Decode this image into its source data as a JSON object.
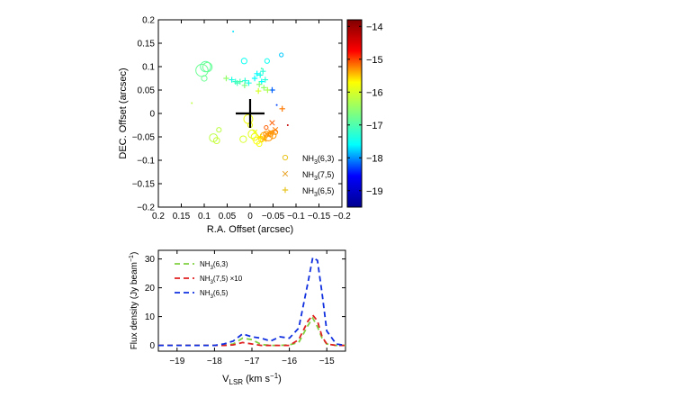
{
  "chart_data": [
    {
      "type": "scatter",
      "xlabel": "R.A. Offset (arcsec)",
      "ylabel": "DEC. Offset (arcsec)",
      "xlim": [
        0.2,
        -0.2
      ],
      "ylim": [
        -0.2,
        0.2
      ],
      "x_reversed": true,
      "xticks": [
        0.2,
        0.15,
        0.1,
        0.05,
        0,
        -0.05,
        -0.1,
        -0.15,
        -0.2
      ],
      "xtick_labels": [
        "0.2",
        "0.15",
        "0.1",
        "0.05",
        "0",
        "−0.05",
        "−0.1",
        "−0.15",
        "−0.2"
      ],
      "yticks": [
        0.2,
        0.15,
        0.1,
        0.05,
        0,
        -0.05,
        -0.1,
        -0.15,
        -0.2
      ],
      "ytick_labels": [
        "0.2",
        "0.15",
        "0.1",
        "0.05",
        "0",
        "−0.05",
        "−0.1",
        "−0.15",
        "−0.2"
      ],
      "grid": false,
      "legend_position": "bottom-right",
      "legend": [
        {
          "base": "NH",
          "sub": "3",
          "tail": "(6,3)",
          "marker": "circle",
          "color": "#e8c420"
        },
        {
          "base": "NH",
          "sub": "3",
          "tail": "(7,5)",
          "marker": "x",
          "color": "#e8a020"
        },
        {
          "base": "NH",
          "sub": "3",
          "tail": "(6,5)",
          "marker": "plus",
          "color": "#e8c420"
        }
      ],
      "center_cross": {
        "x": 0.0,
        "y": 0.0
      },
      "colorbar": {
        "range": [
          -19.5,
          -13.8
        ],
        "ticks": [
          -14,
          -15,
          -16,
          -17,
          -18,
          -19
        ],
        "tick_labels": [
          "−14",
          "−15",
          "−16",
          "−17",
          "−18",
          "−19"
        ],
        "colormap": "jet",
        "colormap_stops": [
          "#00008f",
          "#0000ff",
          "#00ffff",
          "#7fff7f",
          "#ffff00",
          "#ff0000",
          "#800000"
        ]
      },
      "series": [
        {
          "marker": "circle",
          "points": [
            {
              "x": 0.105,
              "y": 0.092,
              "v": -16.8,
              "s": 2.6
            },
            {
              "x": 0.097,
              "y": 0.1,
              "v": -16.9,
              "s": 2.2
            },
            {
              "x": 0.093,
              "y": 0.099,
              "v": -16.8,
              "s": 2.0
            },
            {
              "x": 0.1,
              "y": 0.075,
              "v": -16.8,
              "s": 1.2
            },
            {
              "x": 0.013,
              "y": 0.112,
              "v": -17.5,
              "s": 1.2
            },
            {
              "x": -0.037,
              "y": 0.112,
              "v": -17.5,
              "s": 1.0
            },
            {
              "x": -0.068,
              "y": 0.125,
              "v": -17.8,
              "s": 0.8
            },
            {
              "x": 0.08,
              "y": -0.052,
              "v": -16.2,
              "s": 1.7
            },
            {
              "x": 0.073,
              "y": -0.058,
              "v": -16.1,
              "s": 1.3
            },
            {
              "x": 0.068,
              "y": -0.035,
              "v": -16.2,
              "s": 1.0
            },
            {
              "x": 0.004,
              "y": -0.012,
              "v": -15.8,
              "s": 1.9
            },
            {
              "x": 0.0,
              "y": -0.025,
              "v": -15.8,
              "s": 1.0
            },
            {
              "x": 0.015,
              "y": -0.055,
              "v": -16.0,
              "s": 1.4
            },
            {
              "x": -0.005,
              "y": -0.044,
              "v": -15.9,
              "s": 1.8
            },
            {
              "x": -0.01,
              "y": -0.05,
              "v": -15.9,
              "s": 1.5
            },
            {
              "x": -0.015,
              "y": -0.058,
              "v": -15.7,
              "s": 1.5
            },
            {
              "x": -0.02,
              "y": -0.065,
              "v": -15.8,
              "s": 1.1
            },
            {
              "x": -0.025,
              "y": -0.055,
              "v": -15.6,
              "s": 1.2
            },
            {
              "x": -0.03,
              "y": -0.048,
              "v": -15.4,
              "s": 1.5
            },
            {
              "x": -0.035,
              "y": -0.044,
              "v": -15.3,
              "s": 1.2
            },
            {
              "x": -0.04,
              "y": -0.05,
              "v": -15.3,
              "s": 1.7
            },
            {
              "x": -0.045,
              "y": -0.043,
              "v": -15.3,
              "s": 1.1
            },
            {
              "x": -0.05,
              "y": -0.047,
              "v": -15.3,
              "s": 1.3
            },
            {
              "x": -0.055,
              "y": -0.04,
              "v": -15.3,
              "s": 1.0
            },
            {
              "x": -0.035,
              "y": -0.03,
              "v": -15.1,
              "s": 0.8
            }
          ]
        },
        {
          "marker": "x",
          "points": [
            {
              "x": -0.037,
              "y": -0.045,
              "v": -15.3,
              "s": 1.0
            },
            {
              "x": -0.045,
              "y": -0.04,
              "v": -15.3,
              "s": 1.0
            },
            {
              "x": -0.03,
              "y": -0.055,
              "v": -15.4,
              "s": 1.0
            },
            {
              "x": -0.02,
              "y": -0.05,
              "v": -15.6,
              "s": 1.0
            },
            {
              "x": -0.055,
              "y": -0.035,
              "v": -15.2,
              "s": 1.0
            },
            {
              "x": -0.048,
              "y": -0.02,
              "v": -15.1,
              "s": 1.0
            },
            {
              "x": -0.01,
              "y": -0.04,
              "v": -15.8,
              "s": 1.0
            }
          ]
        },
        {
          "marker": "plus",
          "points": [
            {
              "x": 0.04,
              "y": 0.072,
              "v": -17.4,
              "s": 1.0
            },
            {
              "x": 0.032,
              "y": 0.068,
              "v": -17.2,
              "s": 1.0
            },
            {
              "x": 0.028,
              "y": 0.065,
              "v": -17.1,
              "s": 1.0
            },
            {
              "x": 0.022,
              "y": 0.068,
              "v": -17.0,
              "s": 1.0
            },
            {
              "x": 0.011,
              "y": 0.07,
              "v": -17.3,
              "s": 1.0
            },
            {
              "x": 0.003,
              "y": 0.065,
              "v": -17.4,
              "s": 1.0
            },
            {
              "x": 0.012,
              "y": 0.06,
              "v": -16.7,
              "s": 1.0
            },
            {
              "x": -0.01,
              "y": 0.075,
              "v": -17.6,
              "s": 1.0
            },
            {
              "x": -0.015,
              "y": 0.085,
              "v": -17.6,
              "s": 1.0
            },
            {
              "x": -0.022,
              "y": 0.082,
              "v": -17.4,
              "s": 1.0
            },
            {
              "x": -0.028,
              "y": 0.09,
              "v": -17.3,
              "s": 1.0
            },
            {
              "x": -0.025,
              "y": 0.068,
              "v": -17.6,
              "s": 1.0
            },
            {
              "x": -0.033,
              "y": 0.072,
              "v": -17.3,
              "s": 1.0
            },
            {
              "x": -0.048,
              "y": 0.05,
              "v": -18.2,
              "s": 1.0
            },
            {
              "x": -0.02,
              "y": 0.062,
              "v": -16.6,
              "s": 1.0
            },
            {
              "x": -0.03,
              "y": 0.055,
              "v": -16.5,
              "s": 1.0
            },
            {
              "x": -0.038,
              "y": 0.05,
              "v": -16.3,
              "s": 1.0
            },
            {
              "x": 0.052,
              "y": 0.075,
              "v": -16.5,
              "s": 1.0
            },
            {
              "x": -0.018,
              "y": 0.048,
              "v": -16.0,
              "s": 1.0
            },
            {
              "x": -0.07,
              "y": 0.01,
              "v": -15.2,
              "s": 1.0
            }
          ]
        },
        {
          "marker": "dot",
          "points": [
            {
              "x": 0.037,
              "y": 0.175,
              "v": -17.7,
              "s": 1.0
            },
            {
              "x": 0.127,
              "y": 0.022,
              "v": -16.2,
              "s": 1.0
            },
            {
              "x": -0.058,
              "y": 0.018,
              "v": -18.3,
              "s": 1.0
            },
            {
              "x": -0.025,
              "y": 0.096,
              "v": -17.0,
              "s": 1.0
            },
            {
              "x": -0.082,
              "y": -0.025,
              "v": -14.3,
              "s": 1.0
            }
          ]
        }
      ]
    },
    {
      "type": "line",
      "xlabel_base": "V",
      "xlabel_sub": "LSR",
      "xlabel_tail": " (km s",
      "xlabel_sup": "−1",
      "xlabel_close": ")",
      "ylabel_main": "Flux density (Jy beam",
      "ylabel_sup": "−1",
      "ylabel_close": ")",
      "xlim": [
        -19.5,
        -14.5
      ],
      "ylim": [
        -2,
        33
      ],
      "xticks": [
        -19,
        -18,
        -17,
        -16,
        -15
      ],
      "xtick_labels": [
        "−19",
        "−18",
        "−17",
        "−16",
        "−15"
      ],
      "yticks": [
        0,
        10,
        20,
        30
      ],
      "ytick_labels": [
        "0",
        "10",
        "20",
        "30"
      ],
      "grid": false,
      "legend_position": "top-left",
      "x": [
        -19.5,
        -19.25,
        -19.0,
        -18.75,
        -18.5,
        -18.25,
        -18.0,
        -17.75,
        -17.5,
        -17.25,
        -17.0,
        -16.75,
        -16.5,
        -16.25,
        -16.0,
        -15.75,
        -15.5,
        -15.375,
        -15.25,
        -15.125,
        -15.0,
        -14.75,
        -14.5
      ],
      "series": [
        {
          "base": "NH",
          "sub": "3",
          "tail": "(6,3)",
          "color": "#80d040",
          "values": [
            0,
            0,
            0,
            0,
            0,
            0,
            0,
            0,
            0.5,
            2.5,
            2.0,
            0.3,
            0,
            0,
            0.2,
            1.0,
            7.0,
            9.5,
            6.5,
            2.5,
            0.5,
            0,
            0
          ]
        },
        {
          "base": "NH",
          "sub": "3",
          "tail": "(7,5)",
          "suffix": " ×10",
          "color": "#e02020",
          "values": [
            0,
            0,
            0,
            0,
            0,
            0,
            0,
            0,
            0.2,
            1.0,
            0.5,
            0,
            0,
            0,
            0,
            2.0,
            8.5,
            10.5,
            8.5,
            3.0,
            0.5,
            0,
            0
          ]
        },
        {
          "base": "NH",
          "sub": "3",
          "tail": "(6,5)",
          "color": "#1030e0",
          "values": [
            0,
            0,
            0,
            0,
            0,
            0,
            0,
            0.5,
            1.5,
            4.0,
            3.0,
            2.5,
            1.5,
            3.0,
            2.5,
            6.0,
            22.0,
            30.5,
            29.5,
            18.0,
            5.0,
            0.5,
            0
          ]
        }
      ]
    }
  ]
}
